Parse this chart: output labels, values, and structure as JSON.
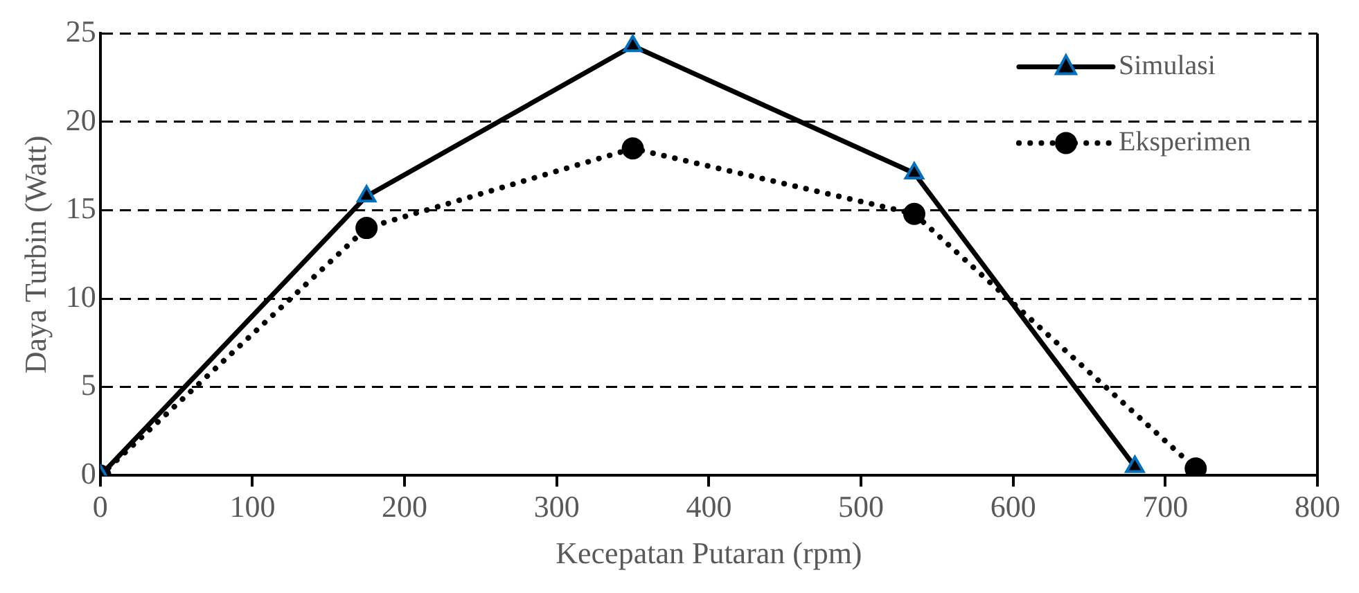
{
  "chart_data": {
    "type": "line",
    "xlabel": "Kecepatan Putaran (rpm)",
    "ylabel": "Daya Turbin (Watt)",
    "xlim": [
      0,
      800
    ],
    "xticks": [
      0,
      100,
      200,
      300,
      400,
      500,
      600,
      700,
      800
    ],
    "ylim": [
      0,
      25
    ],
    "yticks": [
      0,
      5,
      10,
      15,
      20,
      25
    ],
    "grid": "y",
    "legend": "top right",
    "series": [
      {
        "name": "Simulasi",
        "color": "#000000",
        "marker": "triangle",
        "line_style": "solid",
        "x": [
          0,
          175,
          350,
          535,
          680
        ],
        "values": [
          0,
          15.8,
          24.3,
          17.1,
          0.5
        ]
      },
      {
        "name": "Eksperimen",
        "color": "#000000",
        "marker": "circle",
        "line_style": "dotted",
        "x": [
          0,
          175,
          350,
          535,
          720
        ],
        "values": [
          0,
          14,
          18.5,
          14.8,
          0.4
        ]
      }
    ]
  }
}
